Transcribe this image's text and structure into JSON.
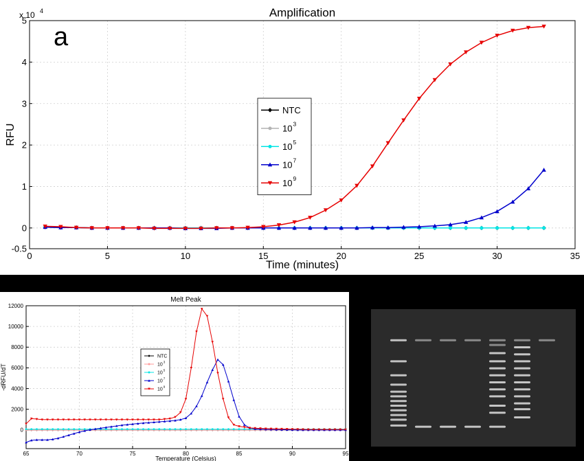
{
  "chart_data": [
    {
      "type": "line",
      "title": "Amplification",
      "panel_label": "a",
      "xlabel": "Time (minutes)",
      "ylabel": "RFU",
      "y_multiplier": "x 10",
      "y_multiplier_exp": "4",
      "xlim": [
        0,
        35
      ],
      "ylim": [
        -0.5,
        5
      ],
      "xticks": [
        0,
        5,
        10,
        15,
        20,
        25,
        30,
        35
      ],
      "yticks": [
        -0.5,
        0,
        1,
        2,
        3,
        4,
        5
      ],
      "grid": true,
      "legend_position": "center-left",
      "x": [
        1,
        2,
        3,
        4,
        5,
        6,
        7,
        8,
        9,
        10,
        11,
        12,
        13,
        14,
        15,
        16,
        17,
        18,
        19,
        20,
        21,
        22,
        23,
        24,
        25,
        26,
        27,
        28,
        29,
        30,
        31,
        32,
        33
      ],
      "series": [
        {
          "name": "NTC",
          "label_base": "NTC",
          "label_exp": "",
          "color": "#000000",
          "marker": "diamond",
          "values": [
            0.02,
            0.01,
            0.01,
            0.0,
            0.0,
            0.0,
            0.0,
            0.0,
            0.0,
            0.0,
            0.0,
            0.0,
            0.0,
            0.0,
            0.0,
            0.0,
            0.0,
            0.0,
            0.0,
            0.0,
            0.0,
            0.0,
            0.0,
            0.0,
            0.0,
            0.0,
            0.0,
            0.0,
            0.0,
            0.0,
            0.0,
            0.0,
            0.0
          ]
        },
        {
          "name": "10^3",
          "label_base": "10",
          "label_exp": "3",
          "color": "#b3b3b3",
          "marker": "circle",
          "values": [
            0.02,
            0.01,
            0.01,
            0.0,
            0.0,
            0.0,
            0.0,
            0.0,
            0.0,
            0.0,
            0.0,
            0.0,
            0.0,
            0.0,
            0.0,
            0.0,
            0.0,
            0.0,
            0.0,
            0.0,
            0.0,
            0.0,
            0.0,
            0.0,
            0.0,
            0.0,
            0.0,
            0.0,
            0.0,
            0.0,
            0.0,
            0.0,
            0.0
          ]
        },
        {
          "name": "10^5",
          "label_base": "10",
          "label_exp": "5",
          "color": "#00e5e5",
          "marker": "circle",
          "values": [
            0.02,
            0.01,
            0.01,
            0.0,
            0.0,
            0.0,
            0.0,
            0.0,
            0.0,
            0.0,
            0.0,
            0.0,
            0.0,
            0.0,
            0.0,
            0.0,
            0.0,
            0.0,
            0.0,
            0.0,
            0.0,
            0.0,
            0.0,
            0.0,
            0.0,
            0.0,
            0.0,
            0.0,
            0.0,
            0.0,
            0.0,
            0.0,
            0.0
          ]
        },
        {
          "name": "10^7",
          "label_base": "10",
          "label_exp": "7",
          "color": "#0000cc",
          "marker": "triangle-up",
          "values": [
            0.02,
            0.01,
            0.01,
            0.0,
            0.0,
            0.0,
            0.0,
            0.0,
            0.0,
            -0.01,
            -0.01,
            -0.01,
            0.0,
            0.0,
            0.0,
            0.0,
            0.0,
            0.0,
            0.0,
            0.0,
            0.0,
            0.01,
            0.01,
            0.02,
            0.03,
            0.05,
            0.08,
            0.14,
            0.25,
            0.4,
            0.63,
            0.95,
            1.4
          ]
        },
        {
          "name": "10^9",
          "label_base": "10",
          "label_exp": "9",
          "color": "#e60000",
          "marker": "triangle-down",
          "values": [
            0.04,
            0.03,
            0.01,
            0.0,
            0.0,
            0.0,
            0.0,
            -0.01,
            -0.01,
            -0.01,
            -0.01,
            0.0,
            0.0,
            0.01,
            0.03,
            0.07,
            0.14,
            0.25,
            0.43,
            0.67,
            1.02,
            1.49,
            2.05,
            2.6,
            3.12,
            3.57,
            3.95,
            4.24,
            4.47,
            4.64,
            4.76,
            4.83,
            4.86
          ]
        }
      ]
    },
    {
      "type": "line",
      "title": "Melt Peak",
      "xlabel": "Temperature (Celsius)",
      "ylabel": "-dRFU/dT",
      "xlim": [
        65,
        95
      ],
      "ylim": [
        -1800,
        12000
      ],
      "xticks": [
        65,
        70,
        75,
        80,
        85,
        90,
        95
      ],
      "yticks": [
        0,
        2000,
        4000,
        6000,
        8000,
        10000,
        12000
      ],
      "grid": true,
      "legend_position": "center-left",
      "x": [
        65,
        65.5,
        66,
        66.5,
        67,
        67.5,
        68,
        68.5,
        69,
        69.5,
        70,
        70.5,
        71,
        71.5,
        72,
        72.5,
        73,
        73.5,
        74,
        74.5,
        75,
        75.5,
        76,
        76.5,
        77,
        77.5,
        78,
        78.5,
        79,
        79.5,
        80,
        80.5,
        81,
        81.5,
        82,
        82.5,
        83,
        83.5,
        84,
        84.5,
        85,
        85.5,
        86,
        86.5,
        87,
        87.5,
        88,
        88.5,
        89,
        89.5,
        90,
        90.5,
        91,
        91.5,
        92,
        92.5,
        93,
        93.5,
        94,
        94.5,
        95
      ],
      "series": [
        {
          "name": "NTC",
          "label_base": "NTC",
          "label_exp": "",
          "color": "#000000",
          "marker": "diamond",
          "values": [
            0,
            0,
            0,
            0,
            0,
            0,
            0,
            0,
            0,
            0,
            0,
            0,
            0,
            0,
            0,
            0,
            0,
            0,
            0,
            0,
            0,
            0,
            0,
            0,
            0,
            0,
            0,
            0,
            0,
            0,
            0,
            0,
            0,
            0,
            0,
            0,
            0,
            0,
            0,
            0,
            0,
            0,
            0,
            0,
            0,
            0,
            0,
            0,
            0,
            0,
            0,
            0,
            0,
            0,
            0,
            0,
            0,
            0,
            0,
            0,
            0
          ]
        },
        {
          "name": "10^3",
          "label_base": "10",
          "label_exp": "3",
          "color": "#ff9999",
          "marker": "circle",
          "values": [
            0,
            0,
            0,
            0,
            0,
            0,
            0,
            0,
            0,
            0,
            0,
            0,
            0,
            0,
            0,
            0,
            0,
            0,
            0,
            0,
            0,
            0,
            0,
            0,
            0,
            0,
            0,
            0,
            0,
            0,
            0,
            0,
            0,
            0,
            0,
            0,
            0,
            0,
            0,
            0,
            0,
            0,
            0,
            0,
            0,
            0,
            0,
            0,
            0,
            0,
            0,
            0,
            0,
            0,
            0,
            0,
            0,
            0,
            0,
            0,
            0
          ]
        },
        {
          "name": "10^5",
          "label_base": "10",
          "label_exp": "5",
          "color": "#00e5e5",
          "marker": "circle",
          "values": [
            80,
            80,
            80,
            80,
            80,
            80,
            80,
            80,
            80,
            80,
            80,
            80,
            80,
            80,
            80,
            80,
            80,
            80,
            80,
            80,
            80,
            80,
            80,
            80,
            80,
            80,
            80,
            80,
            80,
            80,
            80,
            80,
            80,
            80,
            80,
            80,
            80,
            80,
            80,
            80,
            80,
            80,
            80,
            80,
            80,
            80,
            80,
            80,
            80,
            80,
            80,
            80,
            80,
            80,
            80,
            80,
            80,
            80,
            80,
            80,
            80
          ]
        },
        {
          "name": "10^7",
          "label_base": "10",
          "label_exp": "7",
          "color": "#0000cc",
          "marker": "triangle-up",
          "values": [
            -1200,
            -1000,
            -950,
            -950,
            -950,
            -900,
            -800,
            -650,
            -500,
            -350,
            -200,
            -80,
            20,
            100,
            180,
            250,
            320,
            390,
            460,
            520,
            570,
            620,
            670,
            710,
            750,
            790,
            830,
            870,
            920,
            1000,
            1150,
            1600,
            2300,
            3300,
            4600,
            5800,
            6800,
            6300,
            4700,
            2900,
            1300,
            500,
            200,
            100,
            80,
            60,
            50,
            40,
            30,
            20,
            10,
            0,
            0,
            0,
            0,
            0,
            0,
            0,
            0,
            0,
            0
          ]
        },
        {
          "name": "10^9",
          "label_base": "10",
          "label_exp": "9",
          "color": "#e60000",
          "marker": "triangle-down",
          "values": [
            600,
            1100,
            1050,
            1000,
            1000,
            1000,
            1000,
            1000,
            1000,
            1000,
            1000,
            1000,
            1000,
            1000,
            1000,
            1000,
            1000,
            1000,
            1000,
            1000,
            1000,
            1000,
            1000,
            1000,
            1000,
            1000,
            1050,
            1100,
            1250,
            1700,
            3000,
            6000,
            9500,
            11700,
            11000,
            8500,
            5500,
            3000,
            1200,
            500,
            350,
            280,
            200,
            180,
            150,
            130,
            120,
            110,
            100,
            90,
            80,
            70,
            60,
            50,
            50,
            50,
            50,
            50,
            50,
            50,
            50
          ]
        }
      ]
    }
  ],
  "gel": {
    "background": "#2b2b2b",
    "lanes": [
      {
        "role": "ladder",
        "bands": [
          0.14,
          0.32,
          0.44,
          0.52,
          0.58,
          0.62,
          0.66,
          0.7,
          0.74,
          0.78,
          0.82,
          0.87
        ]
      },
      {
        "role": "sample",
        "bands": [
          0.14,
          0.88
        ]
      },
      {
        "role": "sample",
        "bands": [
          0.14,
          0.88
        ]
      },
      {
        "role": "sample",
        "bands": [
          0.14,
          0.88
        ]
      },
      {
        "role": "sample",
        "bands": [
          0.14,
          0.18,
          0.25,
          0.32,
          0.38,
          0.44,
          0.5,
          0.56,
          0.62,
          0.7,
          0.76,
          0.88
        ]
      },
      {
        "role": "sample",
        "bands": [
          0.14,
          0.2,
          0.26,
          0.32,
          0.38,
          0.44,
          0.5,
          0.56,
          0.62,
          0.68,
          0.73,
          0.8
        ]
      },
      {
        "role": "sample",
        "bands": [
          0.14
        ]
      }
    ]
  }
}
